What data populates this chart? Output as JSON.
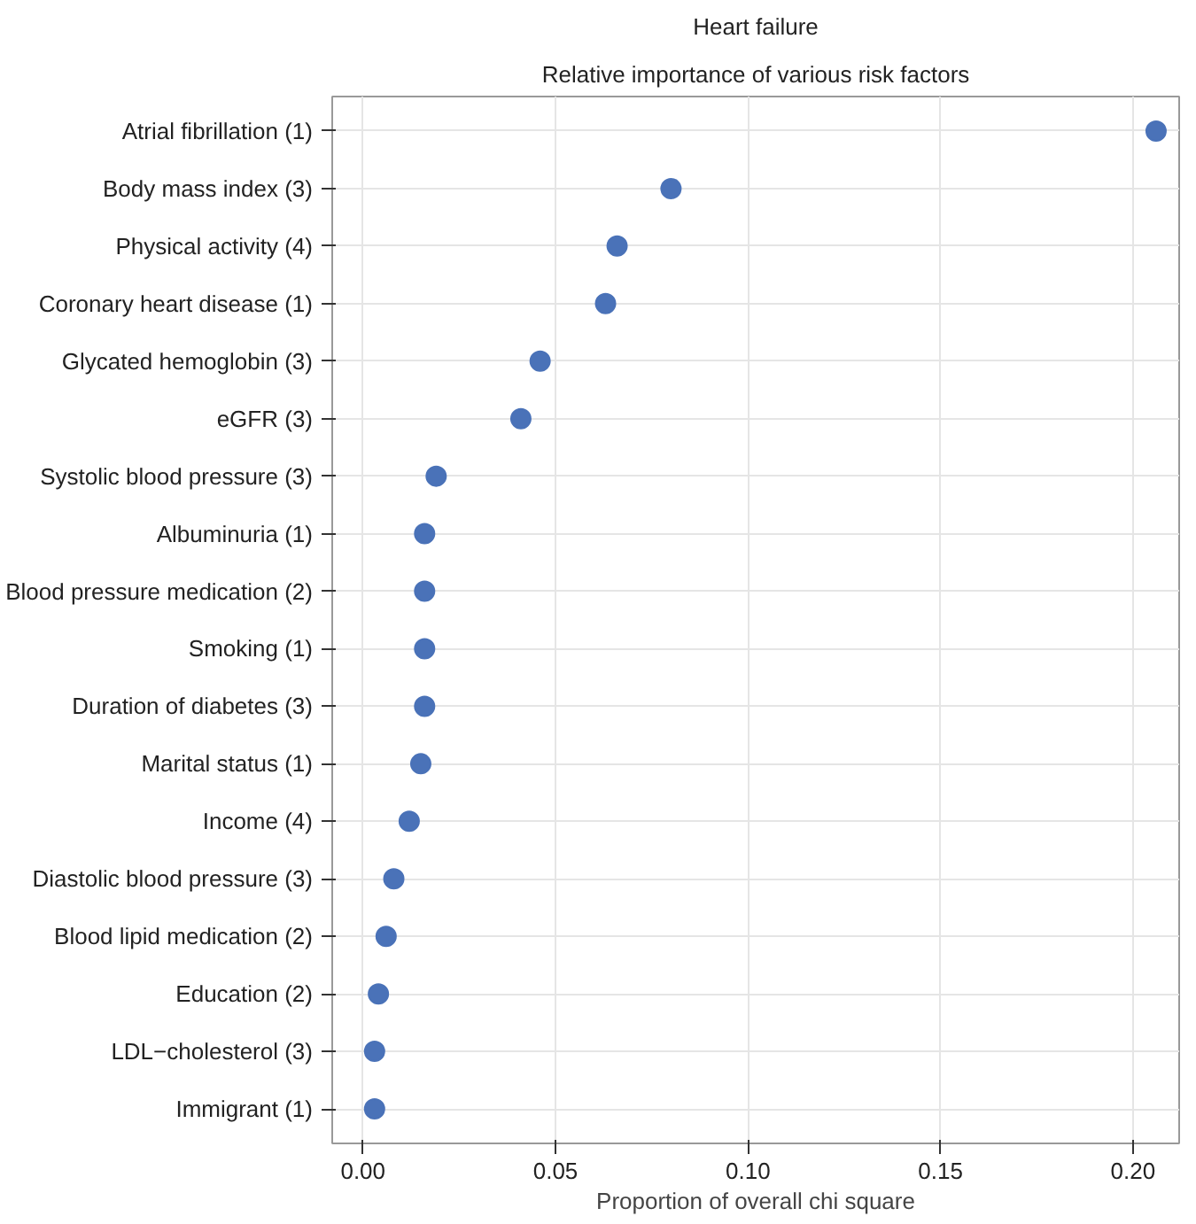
{
  "chart_data": {
    "type": "scatter",
    "title": "Heart failure",
    "subtitle": "Relative importance of various risk factors",
    "xlabel": "Proportion of overall chi square",
    "orientation": "horizontal",
    "categories": [
      "Atrial fibrillation (1)",
      "Body mass index (3)",
      "Physical activity (4)",
      "Coronary heart disease (1)",
      "Glycated hemoglobin (3)",
      "eGFR (3)",
      "Systolic blood pressure (3)",
      "Albuminuria (1)",
      "Blood pressure medication (2)",
      "Smoking (1)",
      "Duration of diabetes (3)",
      "Marital status (1)",
      "Income (4)",
      "Diastolic blood pressure (3)",
      "Blood lipid medication (2)",
      "Education (2)",
      "LDL−cholesterol (3)",
      "Immigrant (1)"
    ],
    "values": [
      0.206,
      0.08,
      0.066,
      0.063,
      0.046,
      0.041,
      0.019,
      0.016,
      0.016,
      0.016,
      0.016,
      0.015,
      0.012,
      0.008,
      0.006,
      0.004,
      0.003,
      0.003
    ],
    "color": "#4a72b8",
    "marker": "circle",
    "grid": true,
    "xlim": [
      -0.008,
      0.212
    ],
    "xticks": [
      {
        "value": 0,
        "label": "0.00"
      },
      0.05,
      {
        "value": 0.1,
        "label": "0.10"
      },
      0.15,
      {
        "value": 0.2,
        "label": "0.20"
      }
    ]
  }
}
